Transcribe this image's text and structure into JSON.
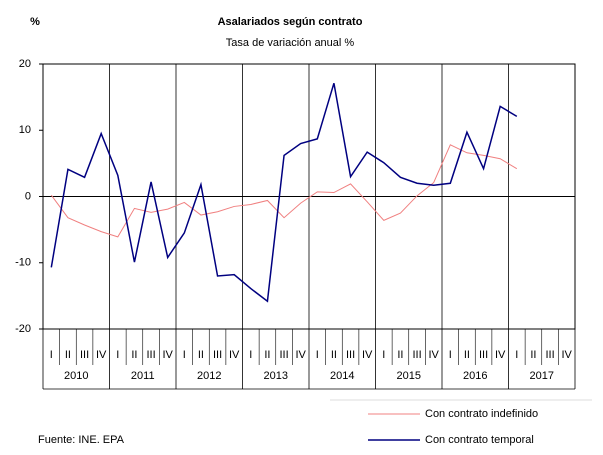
{
  "chart_data": {
    "type": "line",
    "y_unit": "%",
    "title": "Asalariados según contrato",
    "subtitle": "Tasa de variación anual %",
    "categories": [
      "I",
      "II",
      "III",
      "IV",
      "I",
      "II",
      "III",
      "IV",
      "I",
      "II",
      "III",
      "IV",
      "I",
      "II",
      "III",
      "IV",
      "I",
      "II",
      "III",
      "IV",
      "I",
      "II",
      "III",
      "IV",
      "I",
      "II",
      "III",
      "IV",
      "I",
      "II",
      "III",
      "IV"
    ],
    "years": [
      "2010",
      "2011",
      "2012",
      "2013",
      "2014",
      "2015",
      "2016",
      "2017"
    ],
    "series": [
      {
        "name": "Con contrato indefinido",
        "color": "#f08080",
        "values": [
          0.2,
          -3.2,
          -4.3,
          -5.3,
          -6.1,
          -1.8,
          -2.4,
          -1.9,
          -0.9,
          -2.8,
          -2.3,
          -1.5,
          -1.2,
          -0.6,
          -3.2,
          -1.0,
          0.7,
          0.6,
          1.9,
          -0.8,
          -3.6,
          -2.5,
          0.1,
          2.1,
          7.8,
          6.6,
          6.2,
          5.7,
          4.2,
          null,
          null,
          null
        ]
      },
      {
        "name": "Con contrato temporal",
        "color": "#000080",
        "values": [
          -10.7,
          4.1,
          2.9,
          9.5,
          3.2,
          -9.9,
          2.2,
          -9.2,
          -5.5,
          1.8,
          -12.0,
          -11.8,
          -13.9,
          -15.8,
          6.2,
          8.0,
          8.7,
          17.1,
          3.0,
          6.7,
          5.1,
          2.9,
          2.0,
          1.7,
          2.0,
          9.7,
          4.2,
          13.6,
          12.1,
          null,
          null,
          null
        ]
      }
    ],
    "ylim": [
      -20,
      20
    ],
    "yticks": [
      -20,
      -10,
      0,
      10,
      20
    ],
    "legend": "bottom-right",
    "source": "Fuente: INE. EPA"
  }
}
